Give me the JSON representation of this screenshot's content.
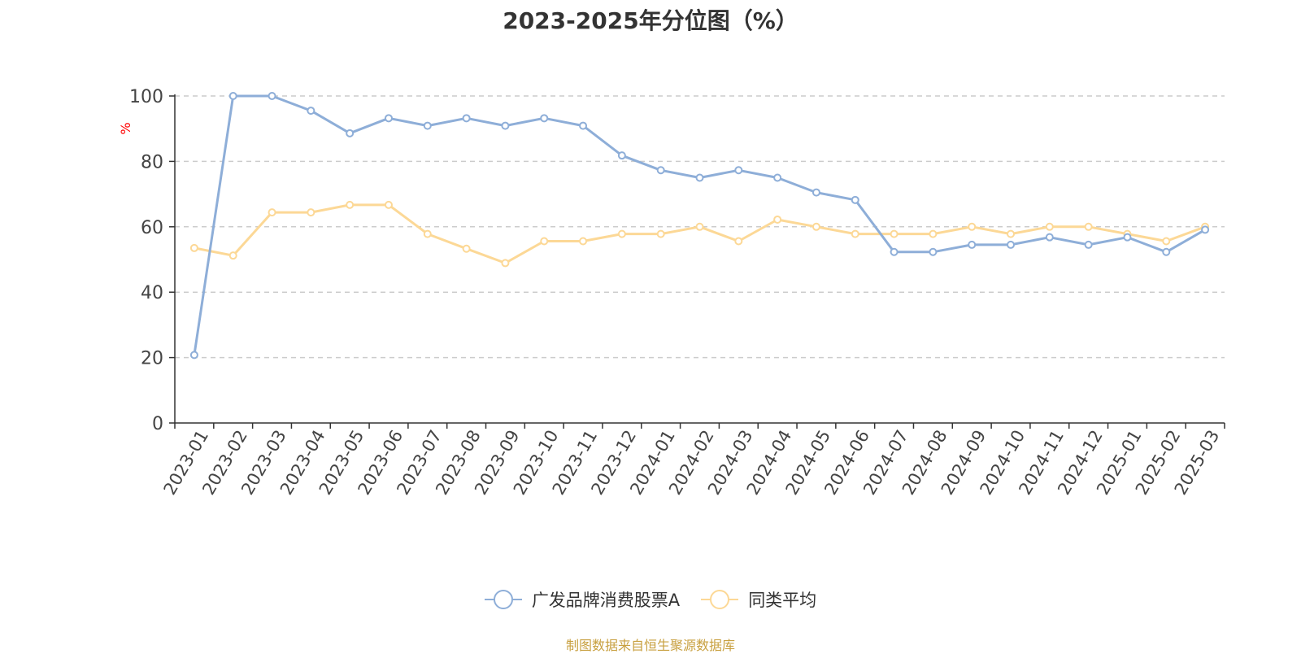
{
  "title": "2023-2025年分位图（%）",
  "source_note": "制图数据来自恒生聚源数据库",
  "colors": {
    "series_a": "#8eaed8",
    "series_b": "#fcd896",
    "source": "#c8a040",
    "ylabel": "#ff0000",
    "grid": "#cccccc",
    "axis": "#333333",
    "text": "#444444"
  },
  "legend": [
    {
      "name": "广发品牌消费股票A",
      "icon": "circle-line-icon"
    },
    {
      "name": "同类平均",
      "icon": "circle-line-icon"
    }
  ],
  "chart_data": {
    "type": "line",
    "title": "2023-2025年分位图（%）",
    "xlabel": "",
    "ylabel": "%",
    "ylim": [
      0,
      100
    ],
    "yticks": [
      0,
      20,
      40,
      60,
      80,
      100
    ],
    "grid": true,
    "legend_position": "bottom-center",
    "categories": [
      "2023-01",
      "2023-02",
      "2023-03",
      "2023-04",
      "2023-05",
      "2023-06",
      "2023-07",
      "2023-08",
      "2023-09",
      "2023-10",
      "2023-11",
      "2023-12",
      "2024-01",
      "2024-02",
      "2024-03",
      "2024-04",
      "2024-05",
      "2024-06",
      "2024-07",
      "2024-08",
      "2024-09",
      "2024-10",
      "2024-11",
      "2024-12",
      "2025-01",
      "2025-02",
      "2025-03"
    ],
    "series": [
      {
        "name": "广发品牌消费股票A",
        "values": [
          20.8,
          100,
          100,
          95.5,
          88.6,
          93.2,
          90.9,
          93.2,
          90.9,
          93.2,
          90.9,
          81.8,
          77.3,
          75.0,
          77.3,
          75.0,
          70.5,
          68.2,
          52.3,
          52.3,
          54.5,
          54.5,
          56.8,
          54.5,
          56.8,
          52.3,
          59.1
        ]
      },
      {
        "name": "同类平均",
        "values": [
          53.5,
          51.2,
          64.4,
          64.4,
          66.7,
          66.7,
          57.8,
          53.3,
          48.9,
          55.6,
          55.6,
          57.8,
          57.8,
          60.0,
          55.6,
          62.2,
          60.0,
          57.8,
          57.8,
          57.8,
          60.0,
          57.8,
          60.0,
          60.0,
          57.8,
          55.6,
          60.0
        ]
      }
    ]
  }
}
